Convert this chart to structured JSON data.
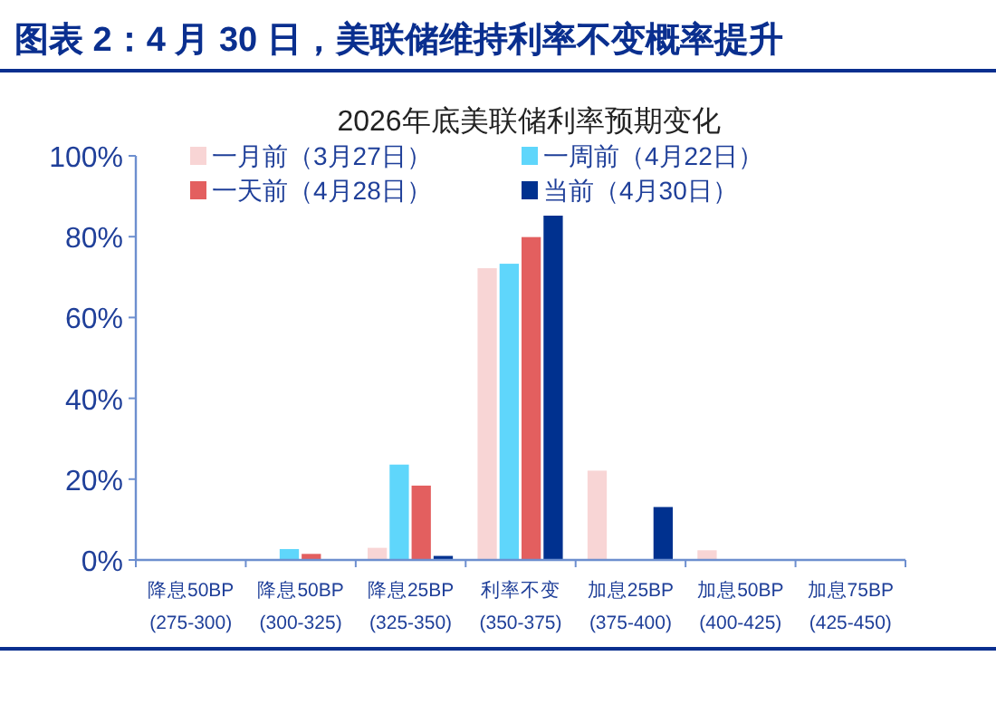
{
  "chart_data": {
    "type": "bar",
    "title": "图表 2：4 月 30 日，美联储维持利率不变概率提升",
    "subtitle": "2026年底美联储利率预期变化",
    "categories": [
      "降息50BP\n(275-300)",
      "降息50BP\n(300-325)",
      "降息25BP\n(325-350)",
      "利率不变\n(350-375)",
      "加息25BP\n(375-400)",
      "加息50BP\n(400-425)",
      "加息75BP\n(425-450)"
    ],
    "series": [
      {
        "name": "一月前（3月27日）",
        "color": "#f8d5d5",
        "values": [
          0,
          0,
          3.0,
          72.2,
          22.1,
          2.4,
          0
        ]
      },
      {
        "name": "一周前（4月22日）",
        "color": "#5fd6fb",
        "values": [
          0,
          2.7,
          23.6,
          73.3,
          0,
          0,
          0
        ]
      },
      {
        "name": "一天前（4月28日）",
        "color": "#e35f5f",
        "values": [
          0,
          1.5,
          18.4,
          79.9,
          0,
          0,
          0
        ]
      },
      {
        "name": "当前（4月30日）",
        "color": "#00318f",
        "values": [
          0,
          0,
          1.0,
          85.2,
          13.1,
          0,
          0
        ]
      }
    ],
    "ylim": [
      0,
      100
    ],
    "yticks": [
      {
        "value": 0,
        "label": "0%"
      },
      {
        "value": 20,
        "label": "20%"
      },
      {
        "value": 40,
        "label": "40%"
      },
      {
        "value": 60,
        "label": "60%"
      },
      {
        "value": 80,
        "label": "80%"
      },
      {
        "value": 100,
        "label": "100%"
      }
    ],
    "grid": false,
    "legend": "top"
  }
}
